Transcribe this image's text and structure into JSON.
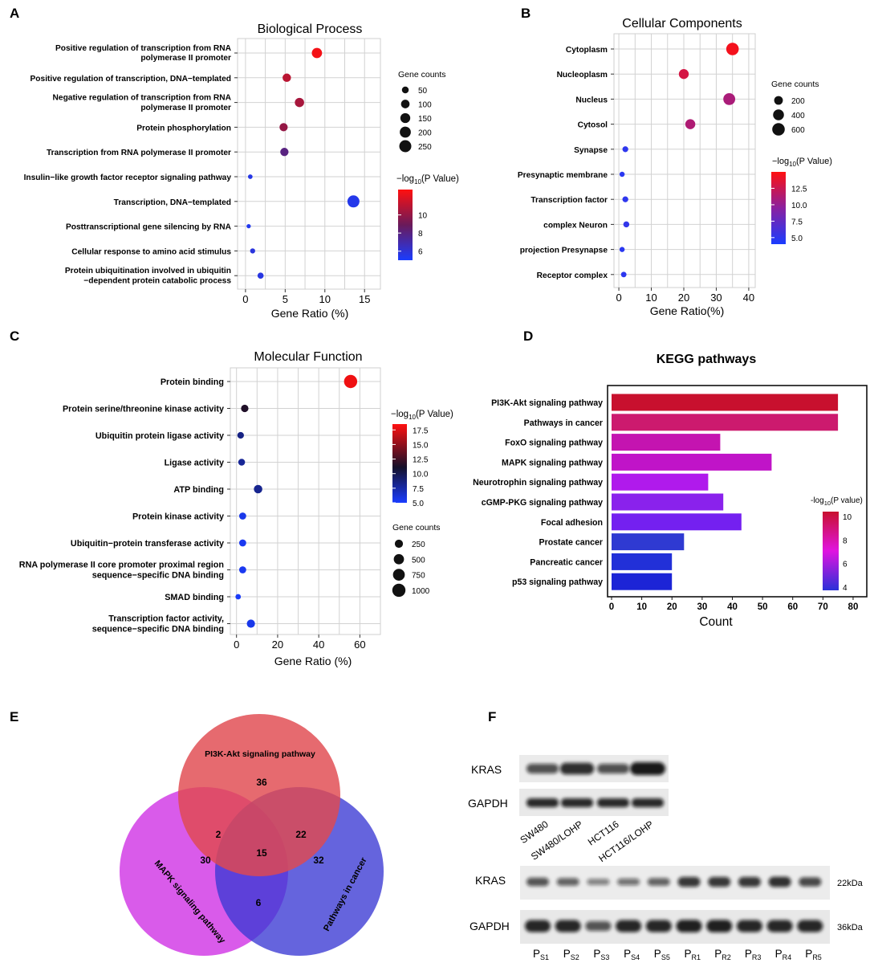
{
  "panels": {
    "A": {
      "letter": "A",
      "chart_data": {
        "type": "scatter",
        "title": "Biological Process",
        "xlabel": "Gene Ratio (%)",
        "xlim": [
          -1,
          17
        ],
        "xticks": [
          0,
          5,
          10,
          15
        ],
        "categories": [
          [
            "Positive regulation of transcription from RNA",
            "polymerase II promoter"
          ],
          [
            "Positive regulation of transcription, DNA−templated"
          ],
          [
            "Negative regulation of transcription from RNA",
            "polymerase II promoter"
          ],
          [
            "Protein phosphorylation"
          ],
          [
            "Transcription from RNA polymerase II promoter"
          ],
          [
            "Insulin−like growth factor receptor signaling pathway"
          ],
          [
            "Transcription, DNA−templated"
          ],
          [
            "Posttranscriptional gene silencing by RNA"
          ],
          [
            "Cellular response to amino acid stimulus"
          ],
          [
            "Protein ubiquitination involved in ubiquitin",
            "−dependent protein catabolic process"
          ]
        ],
        "x": [
          9.0,
          5.2,
          6.8,
          4.8,
          4.9,
          0.6,
          13.6,
          0.4,
          0.9,
          1.9
        ],
        "counts": [
          165,
          95,
          125,
          88,
          90,
          12,
          250,
          8,
          18,
          36
        ],
        "color_values": [
          12.5,
          11.0,
          10.5,
          10.0,
          8.0,
          5.6,
          5.5,
          5.4,
          5.8,
          5.7
        ],
        "size_legend_title": "Gene counts",
        "size_legend": [
          50,
          100,
          150,
          200,
          250
        ],
        "color_legend_title_main": "−log",
        "color_legend_title_sub": "10",
        "color_legend_title_rest": "(P Value)",
        "color_range": [
          5,
          12.8
        ],
        "color_ticks": [
          6,
          8,
          10
        ]
      }
    },
    "B": {
      "letter": "B",
      "chart_data": {
        "type": "scatter",
        "title": "Cellular Components",
        "xlabel": "Gene Ratio(%)",
        "xlim": [
          -1.5,
          42
        ],
        "xticks": [
          0,
          10,
          20,
          30,
          40
        ],
        "categories": [
          [
            "Cytoplasm"
          ],
          [
            "Nucleoplasm"
          ],
          [
            "Nucleus"
          ],
          [
            "Cytosol"
          ],
          [
            "Synapse"
          ],
          [
            "Presynaptic membrane"
          ],
          [
            "Transcription factor"
          ],
          [
            "complex Neuron"
          ],
          [
            "projection Presynapse"
          ],
          [
            "Receptor complex"
          ]
        ],
        "x": [
          35,
          20,
          34,
          22,
          2,
          1,
          2,
          2.3,
          1,
          1.5
        ],
        "counts": [
          600,
          300,
          520,
          310,
          40,
          20,
          40,
          45,
          20,
          30
        ],
        "color_values": [
          14.5,
          13.0,
          11.0,
          11.2,
          5.0,
          4.8,
          5.0,
          5.2,
          4.8,
          4.9
        ],
        "size_legend_title": "Gene counts",
        "size_legend": [
          200,
          400,
          600
        ],
        "color_legend_title_main": "−log",
        "color_legend_title_sub": "10",
        "color_legend_title_rest": "(P Value)",
        "color_range": [
          4.0,
          15.0
        ],
        "color_ticks": [
          5.0,
          7.5,
          10.0,
          12.5
        ]
      }
    },
    "C": {
      "letter": "C",
      "chart_data": {
        "type": "scatter",
        "title": "Molecular Function",
        "xlabel": "Gene Ratio (%)",
        "xlim": [
          -3,
          70
        ],
        "xticks": [
          0,
          20,
          40,
          60
        ],
        "categories": [
          [
            "Protein binding"
          ],
          [
            "Protein serine/threonine kinase activity"
          ],
          [
            "Ubiquitin protein ligase activity"
          ],
          [
            "Ligase activity"
          ],
          [
            "ATP binding"
          ],
          [
            "Protein kinase activity"
          ],
          [
            "Ubiquitin−protein transferase activity"
          ],
          [
            "RNA polymerase II core promoter proximal region",
            "sequence−specific DNA binding"
          ],
          [
            "SMAD binding"
          ],
          [
            "Transcription factor activity,",
            "sequence−specific DNA binding"
          ]
        ],
        "x": [
          55.5,
          4,
          2,
          2.5,
          10.5,
          3,
          3,
          3,
          0.8,
          7
        ],
        "counts": [
          1000,
          180,
          120,
          130,
          280,
          150,
          150,
          150,
          50,
          250
        ],
        "color_values": [
          18.0,
          11.5,
          8.5,
          8.0,
          8.2,
          5.6,
          5.4,
          5.4,
          5.2,
          5.6
        ],
        "size_legend_title": "Gene counts",
        "size_legend": [
          250,
          500,
          750,
          1000
        ],
        "color_legend_title_main": "−log",
        "color_legend_title_sub": "10",
        "color_legend_title_rest": "(P Value)",
        "color_range": [
          5.0,
          18.5
        ],
        "color_ticks": [
          5.0,
          7.5,
          10.0,
          12.5,
          15.0,
          17.5
        ]
      }
    },
    "D": {
      "letter": "D",
      "chart_data": {
        "type": "bar",
        "orientation": "horizontal",
        "title": "KEGG pathways",
        "xlabel": "Count",
        "xlim": [
          0,
          84
        ],
        "xticks": [
          0,
          10,
          20,
          30,
          40,
          50,
          60,
          70,
          80
        ],
        "categories": [
          "PI3K-Akt signaling pathway",
          "Pathways in cancer",
          "FoxO signaling pathway",
          "MAPK signaling pathway",
          "Neurotrophin signaling pathway",
          "cGMP-PKG signaling pathway",
          "Focal adhesion",
          "Prostate cancer",
          "Pancreatic cancer",
          "p53 signaling pathway"
        ],
        "values": [
          75,
          75,
          36,
          53,
          32,
          37,
          43,
          24,
          20,
          20
        ],
        "colors": [
          "#c8102e",
          "#cc1a6e",
          "#c414b0",
          "#c014c8",
          "#b01aec",
          "#8a22ec",
          "#7420f0",
          "#2f3ad2",
          "#2230d8",
          "#1c24d6"
        ],
        "color_legend_title_main": "-log",
        "color_legend_title_sub": "10",
        "color_legend_title_rest": "(P value)",
        "color_ticks": [
          4,
          6,
          8,
          10
        ]
      }
    },
    "E": {
      "letter": "E",
      "venn": {
        "set_labels": [
          "PI3K-Akt signaling pathway",
          "MAPK signaling pathway",
          "Pathways in cancer"
        ],
        "colors": [
          "#e0494f",
          "#d23ee6",
          "#3a39d4"
        ],
        "only_pi3k": "36",
        "only_mapk": "30",
        "only_cancer": "32",
        "pi3k_mapk": "2",
        "pi3k_cancer": "22",
        "mapk_cancer": "6",
        "all_three": "15"
      }
    },
    "F": {
      "letter": "F",
      "blot_top": {
        "rows": [
          "KRAS",
          "GAPDH"
        ],
        "lanes": [
          "SW480",
          "SW480/LOHP",
          "HCT116",
          "HCT116/LOHP"
        ],
        "kras_intensity": [
          0.6,
          0.85,
          0.6,
          1.0
        ]
      },
      "blot_bottom": {
        "rows": [
          "KRAS",
          "GAPDH"
        ],
        "sizes": [
          "22kDa",
          "36kDa"
        ],
        "lanes": [
          {
            "main": "P",
            "sub": "S1"
          },
          {
            "main": "P",
            "sub": "S2"
          },
          {
            "main": "P",
            "sub": "S3"
          },
          {
            "main": "P",
            "sub": "S4"
          },
          {
            "main": "P",
            "sub": "S5"
          },
          {
            "main": "P",
            "sub": "R1"
          },
          {
            "main": "P",
            "sub": "R2"
          },
          {
            "main": "P",
            "sub": "R3"
          },
          {
            "main": "P",
            "sub": "R4"
          },
          {
            "main": "P",
            "sub": "R5"
          }
        ],
        "kras_intensity": [
          0.6,
          0.5,
          0.3,
          0.4,
          0.5,
          0.8,
          0.8,
          0.8,
          0.85,
          0.7
        ],
        "gapdh_intensity": [
          0.9,
          0.9,
          0.6,
          0.9,
          0.9,
          0.95,
          0.95,
          0.9,
          0.9,
          0.9
        ]
      }
    }
  }
}
